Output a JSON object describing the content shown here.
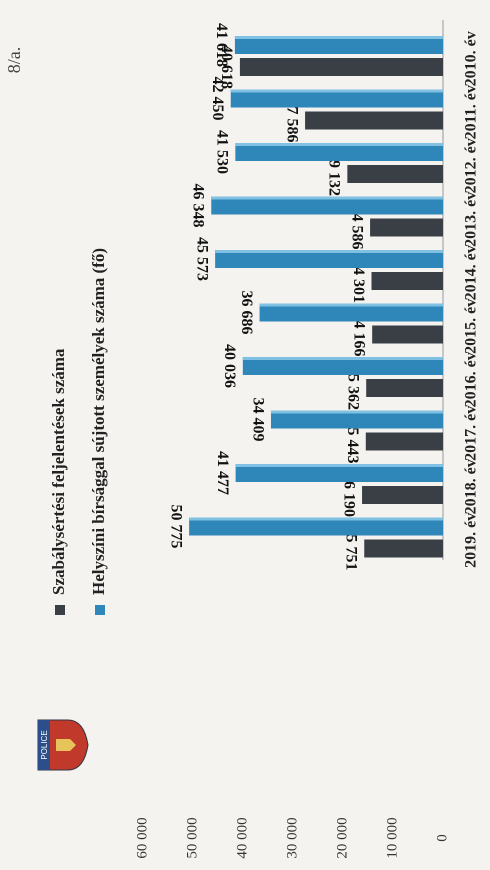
{
  "page": {
    "number": "8/a."
  },
  "logo": {
    "text": "POLICE"
  },
  "chart_data": {
    "type": "bar",
    "orientation": "horizontal",
    "categories": [
      "2010. év",
      "2011. év",
      "2012. év",
      "2013. év",
      "2014. év",
      "2015. év",
      "2016. év",
      "2017. év",
      "2018. év",
      "2019. év"
    ],
    "series": [
      {
        "name": "Szabálysértési feljelentések száma",
        "color": "#3a3f46",
        "values": [
          40618,
          27586,
          19132,
          14586,
          14301,
          14166,
          15362,
          15443,
          16190,
          15751
        ]
      },
      {
        "name": "Helyszíni bírsággal sújtott személyek száma (fő)",
        "color": "#2f86b8",
        "values": [
          41618,
          42450,
          41530,
          46348,
          45573,
          36686,
          40036,
          34409,
          41477,
          50775
        ]
      }
    ],
    "value_labels": [
      [
        "40 618",
        "27 586",
        "19 132",
        "14 586",
        "14 301",
        "14 166",
        "15 362",
        "15 443",
        "16 190",
        "15 751"
      ],
      [
        "41 618",
        "42 450",
        "41 530",
        "46 348",
        "45 573",
        "36 686",
        "40 036",
        "34 409",
        "41 477",
        "50 775"
      ]
    ],
    "axis": {
      "min": 0,
      "max": 60000,
      "step": 10000,
      "tick_labels": [
        "0",
        "10 000",
        "20 000",
        "30 000",
        "40 000",
        "50 000",
        "60 000"
      ]
    },
    "legend": {
      "position": "top"
    },
    "grid": false
  }
}
